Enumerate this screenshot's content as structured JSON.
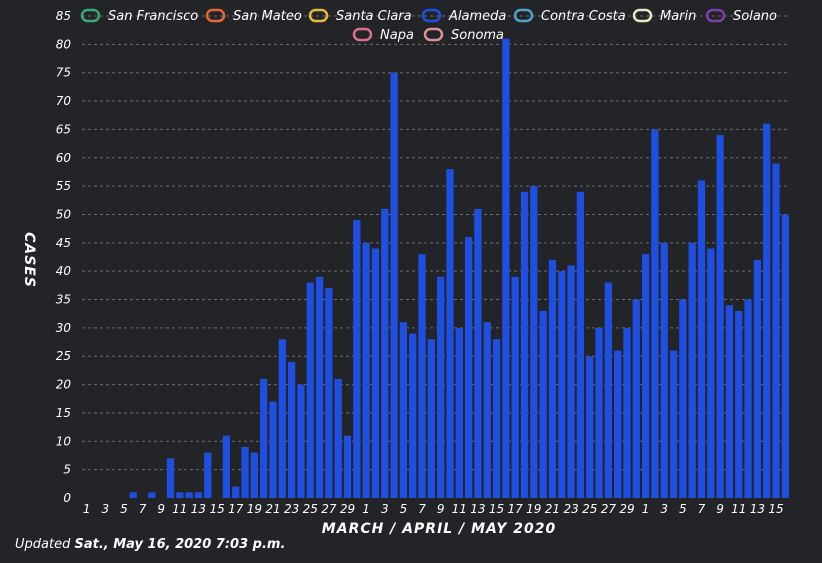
{
  "chart_data": {
    "type": "bar",
    "xlabel": "MARCH / APRIL / MAY 2020",
    "ylabel": "CASES",
    "ylim": [
      0,
      85
    ],
    "yticks": [
      0,
      5,
      10,
      15,
      20,
      25,
      30,
      35,
      40,
      45,
      50,
      55,
      60,
      65,
      70,
      75,
      80,
      85
    ],
    "grid": true,
    "legend_position": "top",
    "legend": [
      {
        "name": "San Francisco",
        "color": "#3aa876"
      },
      {
        "name": "San Mateo",
        "color": "#e0693a"
      },
      {
        "name": "Santa Clara",
        "color": "#e8b83a"
      },
      {
        "name": "Alameda",
        "color": "#1f4fe0"
      },
      {
        "name": "Contra Costa",
        "color": "#4fa3c8"
      },
      {
        "name": "Marin",
        "color": "#e9e6c2"
      },
      {
        "name": "Solano",
        "color": "#7b3fb0"
      },
      {
        "name": "Napa",
        "color": "#d9708a"
      },
      {
        "name": "Sonoma",
        "color": "#d89494"
      }
    ],
    "categories": [
      "1",
      "2",
      "3",
      "4",
      "5",
      "6",
      "7",
      "8",
      "9",
      "10",
      "11",
      "12",
      "13",
      "14",
      "15",
      "16",
      "17",
      "18",
      "19",
      "20",
      "21",
      "22",
      "23",
      "24",
      "25",
      "26",
      "27",
      "28",
      "29",
      "30",
      "31",
      "1",
      "2",
      "3",
      "4",
      "5",
      "6",
      "7",
      "8",
      "9",
      "10",
      "11",
      "12",
      "13",
      "14",
      "15",
      "16",
      "17",
      "18",
      "19",
      "20",
      "21",
      "22",
      "23",
      "24",
      "25",
      "26",
      "27",
      "28",
      "29",
      "30",
      "1",
      "2",
      "3",
      "4",
      "5",
      "6",
      "7",
      "8",
      "9",
      "10",
      "11",
      "12",
      "13",
      "14",
      "15"
    ],
    "tick_labels": [
      "1",
      "3",
      "5",
      "7",
      "9",
      "11",
      "13",
      "15",
      "17",
      "19",
      "21",
      "23",
      "25",
      "27",
      "29",
      "1",
      "3",
      "5",
      "7",
      "9",
      "11",
      "13",
      "15",
      "17",
      "19",
      "21",
      "23",
      "25",
      "27",
      "29",
      "1",
      "3",
      "5",
      "7",
      "9",
      "11",
      "13",
      "15"
    ],
    "series": [
      {
        "name": "Alameda",
        "color": "#1f4fe0",
        "values": [
          0,
          0,
          0,
          0,
          0,
          1,
          0,
          1,
          0,
          7,
          1,
          1,
          1,
          8,
          0,
          11,
          2,
          9,
          8,
          21,
          17,
          28,
          24,
          20,
          38,
          39,
          37,
          21,
          11,
          49,
          45,
          44,
          51,
          75,
          31,
          29,
          43,
          28,
          39,
          58,
          30,
          46,
          51,
          31,
          28,
          81,
          39,
          54,
          55,
          33,
          42,
          40,
          41,
          54,
          25,
          30,
          38,
          26,
          30,
          35,
          43,
          65,
          45,
          26,
          35,
          45,
          56,
          44,
          64,
          34,
          33,
          35,
          42,
          66,
          59,
          50
        ]
      }
    ]
  },
  "footer": {
    "prefix": "Updated ",
    "date": "Sat., May 16, 2020 7:03 p.m."
  }
}
